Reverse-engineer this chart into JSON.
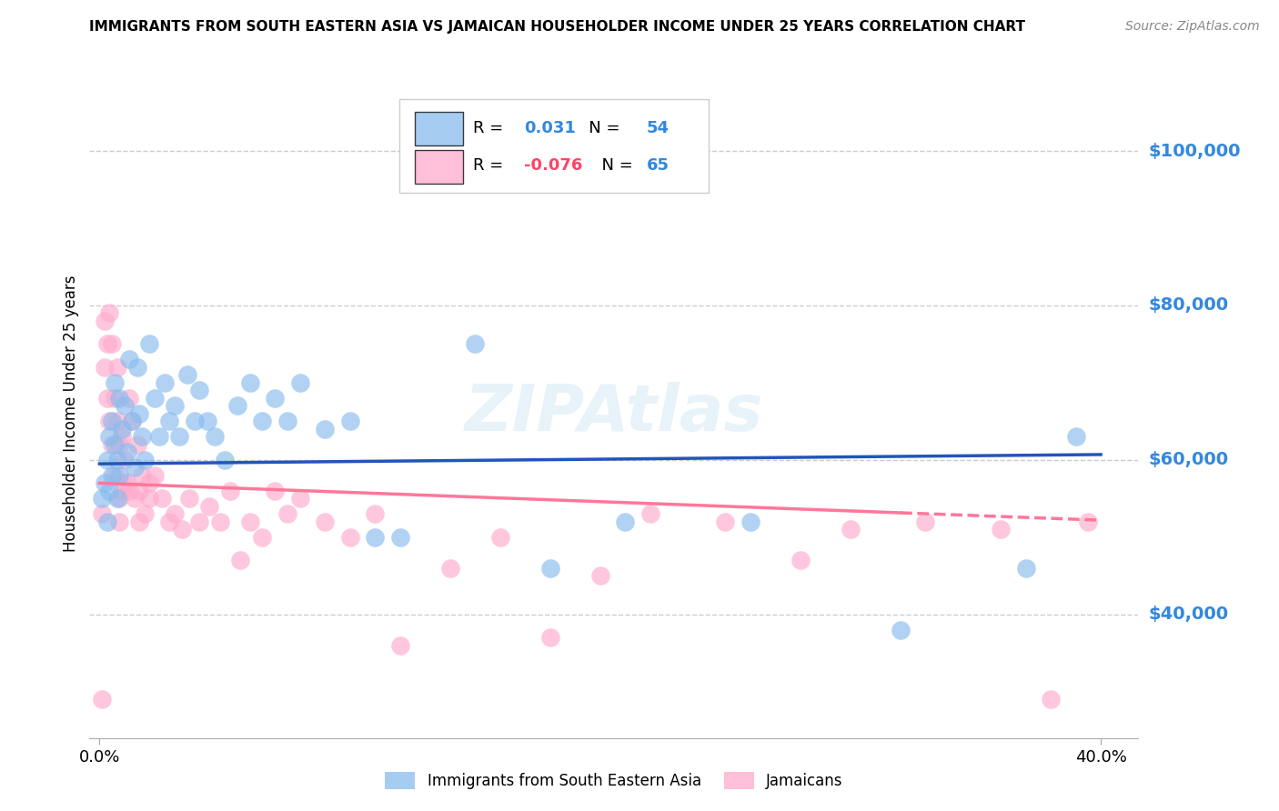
{
  "title": "IMMIGRANTS FROM SOUTH EASTERN ASIA VS JAMAICAN HOUSEHOLDER INCOME UNDER 25 YEARS CORRELATION CHART",
  "source": "Source: ZipAtlas.com",
  "ylabel": "Householder Income Under 25 years",
  "ytick_values": [
    40000,
    60000,
    80000,
    100000
  ],
  "ymin": 24000,
  "ymax": 108000,
  "xmin": -0.004,
  "xmax": 0.415,
  "legend_label_blue": "Immigrants from South Eastern Asia",
  "legend_label_pink": "Jamaicans",
  "R_blue": "0.031",
  "N_blue": "54",
  "R_pink": "-0.076",
  "N_pink": "65",
  "watermark": "ZIPAtlas",
  "blue_color": "#88BBEE",
  "pink_color": "#FFAACC",
  "line_blue": "#2255BB",
  "line_pink": "#FF7799",
  "blue_scatter_x": [
    0.001,
    0.002,
    0.003,
    0.003,
    0.004,
    0.004,
    0.005,
    0.005,
    0.006,
    0.006,
    0.007,
    0.007,
    0.008,
    0.008,
    0.009,
    0.01,
    0.011,
    0.012,
    0.013,
    0.014,
    0.015,
    0.016,
    0.017,
    0.018,
    0.02,
    0.022,
    0.024,
    0.026,
    0.028,
    0.03,
    0.032,
    0.035,
    0.038,
    0.04,
    0.043,
    0.046,
    0.05,
    0.055,
    0.06,
    0.065,
    0.07,
    0.075,
    0.08,
    0.09,
    0.1,
    0.11,
    0.12,
    0.15,
    0.18,
    0.21,
    0.26,
    0.32,
    0.37,
    0.39
  ],
  "blue_scatter_y": [
    55000,
    57000,
    60000,
    52000,
    63000,
    56000,
    65000,
    58000,
    62000,
    70000,
    60000,
    55000,
    68000,
    58000,
    64000,
    67000,
    61000,
    73000,
    65000,
    59000,
    72000,
    66000,
    63000,
    60000,
    75000,
    68000,
    63000,
    70000,
    65000,
    67000,
    63000,
    71000,
    65000,
    69000,
    65000,
    63000,
    60000,
    67000,
    70000,
    65000,
    68000,
    65000,
    70000,
    64000,
    65000,
    50000,
    50000,
    75000,
    46000,
    52000,
    52000,
    38000,
    46000,
    63000
  ],
  "pink_scatter_x": [
    0.001,
    0.002,
    0.002,
    0.003,
    0.003,
    0.004,
    0.004,
    0.005,
    0.005,
    0.006,
    0.006,
    0.007,
    0.007,
    0.008,
    0.008,
    0.009,
    0.009,
    0.01,
    0.01,
    0.011,
    0.012,
    0.013,
    0.014,
    0.015,
    0.016,
    0.017,
    0.018,
    0.02,
    0.022,
    0.025,
    0.028,
    0.03,
    0.033,
    0.036,
    0.04,
    0.044,
    0.048,
    0.052,
    0.056,
    0.06,
    0.065,
    0.07,
    0.075,
    0.08,
    0.09,
    0.1,
    0.11,
    0.12,
    0.14,
    0.16,
    0.18,
    0.2,
    0.22,
    0.25,
    0.28,
    0.3,
    0.33,
    0.36,
    0.38,
    0.395,
    0.008,
    0.012,
    0.016,
    0.02,
    0.001
  ],
  "pink_scatter_y": [
    53000,
    78000,
    72000,
    68000,
    75000,
    65000,
    79000,
    62000,
    75000,
    58000,
    68000,
    72000,
    65000,
    55000,
    62000,
    56000,
    63000,
    60000,
    57000,
    57000,
    68000,
    65000,
    55000,
    62000,
    56000,
    58000,
    53000,
    57000,
    58000,
    55000,
    52000,
    53000,
    51000,
    55000,
    52000,
    54000,
    52000,
    56000,
    47000,
    52000,
    50000,
    56000,
    53000,
    55000,
    52000,
    50000,
    53000,
    36000,
    46000,
    50000,
    37000,
    45000,
    53000,
    52000,
    47000,
    51000,
    52000,
    51000,
    29000,
    52000,
    52000,
    56000,
    52000,
    55000,
    29000
  ]
}
